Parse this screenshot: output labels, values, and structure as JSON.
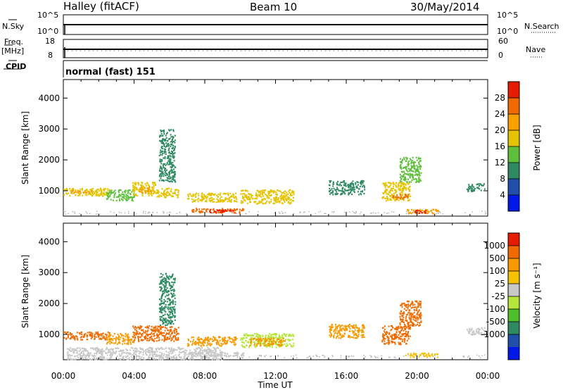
{
  "header": {
    "title_station": "Halley (fitACF)",
    "title_beam": "Beam 10",
    "title_date": "30/May/2014"
  },
  "strip_labels": {
    "nsky": "N.Sky",
    "nsearch": "N.Search",
    "freq": "Freq.",
    "freq_unit": "[MHz]",
    "nave": "Nave",
    "cpid": "CPID",
    "cpid_value": "normal (fast) 151",
    "nsky_ticks": [
      "10^5",
      "10^0"
    ],
    "nsearch_ticks": [
      "10^5",
      "10^0"
    ],
    "freq_ticks": [
      "18",
      "8"
    ],
    "nave_ticks": [
      "60",
      "0"
    ]
  },
  "colors": {
    "power_scale": [
      "#0018e8",
      "#1f4fa8",
      "#2e8a63",
      "#5cc03a",
      "#e6c300",
      "#f7a000",
      "#f06a00",
      "#e61c00"
    ],
    "velocity_scale": [
      "#e61c00",
      "#f06a00",
      "#f79a00",
      "#f7c000",
      "#c8c8c8",
      "#b6e63c",
      "#4cbf2a",
      "#2e8a63",
      "#1f4fa8",
      "#0018e8"
    ],
    "ground_scatter": "#b4b4b4"
  },
  "chart_data": [
    {
      "type": "heatmap",
      "name": "power",
      "ylabel": "Slant Range [km]",
      "xlabel": "",
      "x_ticks": [
        "00:00",
        "04:00",
        "08:00",
        "12:00",
        "16:00",
        "20:00",
        "00:00"
      ],
      "y_ticks": [
        "1000",
        "2000",
        "3000",
        "4000"
      ],
      "ylim": [
        180,
        4600
      ],
      "xlim_hours": [
        0,
        24
      ],
      "colorbar_label": "Power [dB]",
      "colorbar_ticks": [
        "4",
        "8",
        "12",
        "16",
        "20",
        "24",
        "28"
      ],
      "regions": [
        {
          "t0": 0.0,
          "t1": 2.6,
          "r0": 850,
          "r1": 1100,
          "level": 4
        },
        {
          "t0": 0.3,
          "t1": 1.6,
          "r0": 930,
          "r1": 1030,
          "level": 5
        },
        {
          "t0": 2.4,
          "t1": 4.0,
          "r0": 700,
          "r1": 1050,
          "level": 3
        },
        {
          "t0": 3.9,
          "t1": 5.2,
          "r0": 850,
          "r1": 1300,
          "level": 4
        },
        {
          "t0": 4.3,
          "t1": 5.0,
          "r0": 950,
          "r1": 1150,
          "level": 5
        },
        {
          "t0": 5.2,
          "t1": 6.5,
          "r0": 800,
          "r1": 1100,
          "level": 4
        },
        {
          "t0": 5.4,
          "t1": 6.3,
          "r0": 1300,
          "r1": 3000,
          "level": 2
        },
        {
          "t0": 7.0,
          "t1": 9.8,
          "r0": 650,
          "r1": 950,
          "level": 4
        },
        {
          "t0": 7.2,
          "t1": 10.2,
          "r0": 300,
          "r1": 450,
          "level": 6
        },
        {
          "t0": 8.2,
          "t1": 9.6,
          "r0": 320,
          "r1": 420,
          "level": 7
        },
        {
          "t0": 10.0,
          "t1": 13.0,
          "r0": 600,
          "r1": 1050,
          "level": 4
        },
        {
          "t0": 18.0,
          "t1": 19.6,
          "r0": 700,
          "r1": 1300,
          "level": 4
        },
        {
          "t0": 18.6,
          "t1": 19.5,
          "r0": 750,
          "r1": 900,
          "level": 6
        },
        {
          "t0": 19.0,
          "t1": 20.2,
          "r0": 1300,
          "r1": 2100,
          "level": 3
        },
        {
          "t0": 19.3,
          "t1": 21.2,
          "r0": 280,
          "r1": 420,
          "level": 5
        },
        {
          "t0": 19.8,
          "t1": 20.6,
          "r0": 300,
          "r1": 400,
          "level": 7
        },
        {
          "t0": 15.0,
          "t1": 17.0,
          "r0": 900,
          "r1": 1350,
          "level": 2
        },
        {
          "t0": 22.8,
          "t1": 23.8,
          "r0": 1000,
          "r1": 1250,
          "level": 2
        }
      ]
    },
    {
      "type": "heatmap",
      "name": "velocity",
      "ylabel": "Slant Range [km]",
      "xlabel": "Time UT",
      "x_ticks": [
        "00:00",
        "04:00",
        "08:00",
        "12:00",
        "16:00",
        "20:00",
        "00:00"
      ],
      "y_ticks": [
        "1000",
        "2000",
        "3000",
        "4000"
      ],
      "ylim": [
        180,
        4600
      ],
      "xlim_hours": [
        0,
        24
      ],
      "colorbar_label": "Velocity [m s⁻¹]",
      "colorbar_ticks": [
        "1000",
        "500",
        "100",
        "25",
        "-25",
        "-100",
        "-500",
        "-1000"
      ],
      "regions": [
        {
          "t0": 0.0,
          "t1": 2.6,
          "r0": 850,
          "r1": 1100,
          "level": 1
        },
        {
          "t0": 2.4,
          "t1": 4.0,
          "r0": 700,
          "r1": 1050,
          "level": 2
        },
        {
          "t0": 3.9,
          "t1": 6.5,
          "r0": 800,
          "r1": 1300,
          "level": 1
        },
        {
          "t0": 5.4,
          "t1": 6.3,
          "r0": 1300,
          "r1": 3000,
          "level": 7
        },
        {
          "t0": 7.0,
          "t1": 9.8,
          "r0": 650,
          "r1": 950,
          "level": 2
        },
        {
          "t0": 7.2,
          "t1": 10.2,
          "r0": 300,
          "r1": 450,
          "level": 4
        },
        {
          "t0": 10.0,
          "t1": 13.0,
          "r0": 600,
          "r1": 1050,
          "level": 5
        },
        {
          "t0": 10.5,
          "t1": 12.5,
          "r0": 650,
          "r1": 900,
          "level": 2
        },
        {
          "t0": 18.0,
          "t1": 19.6,
          "r0": 700,
          "r1": 1300,
          "level": 1
        },
        {
          "t0": 19.0,
          "t1": 20.2,
          "r0": 1300,
          "r1": 2100,
          "level": 1
        },
        {
          "t0": 19.3,
          "t1": 21.2,
          "r0": 280,
          "r1": 420,
          "level": 3
        },
        {
          "t0": 0.2,
          "t1": 9.0,
          "r0": 200,
          "r1": 600,
          "level": 4
        },
        {
          "t0": 15.0,
          "t1": 17.0,
          "r0": 900,
          "r1": 1350,
          "level": 2
        },
        {
          "t0": 22.8,
          "t1": 23.8,
          "r0": 1000,
          "r1": 1250,
          "level": 4
        }
      ]
    }
  ]
}
